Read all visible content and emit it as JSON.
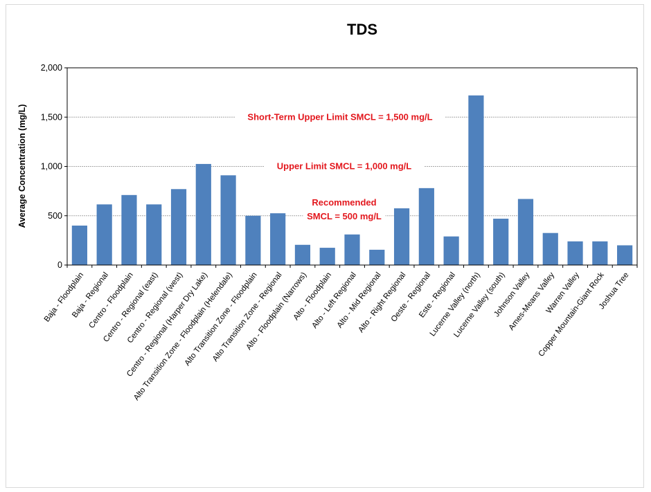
{
  "chart_data": {
    "type": "bar",
    "title": "TDS",
    "xlabel": "",
    "ylabel": "Average Concentration (mg/L)",
    "ylim": [
      0,
      2000
    ],
    "yticks": [
      0,
      500,
      1000,
      1500,
      2000
    ],
    "ytick_labels": [
      "0",
      "500",
      "1,000",
      "1,500",
      "2,000"
    ],
    "grid": false,
    "bar_color": "#4F81BD",
    "reference_line_color": "#a6a6a6",
    "annotation_color": "#e3171d",
    "reference_lines": [
      {
        "value": 1500,
        "label_lines": [
          "Short-Term Upper Limit SMCL = 1,500 mg/L"
        ]
      },
      {
        "value": 1000,
        "label_lines": [
          "Upper Limit  SMCL = 1,000 mg/L"
        ]
      },
      {
        "value": 500,
        "label_lines": [
          "Recommended",
          "SMCL = 500 mg/L"
        ]
      }
    ],
    "categories": [
      "Baja - Floodplain",
      "Baja - Regional",
      "Centro - Floodplain",
      "Centro - Regional (east)",
      "Centro - Regional (west)",
      "Centro - Regional (Harper Dry Lake)",
      "Alto Transition Zone - Floodplain (Helendale)",
      "Alto Transition Zone - Floodplain",
      "Alto Transition Zone - Regional",
      "Alto - Floodplain (Narrows)",
      "Alto - Floodplain",
      "Alto - Left Regional",
      "Alto - Mid Regional",
      "Alto - Right Regional",
      "Oeste - Regional",
      "Este - Regional",
      "Lucerne Valley (north)",
      "Lucerne Valley (south)",
      "Johnson Valley",
      "Ames-Means Valley",
      "Warren Valley",
      "Copper Mountain-Giant Rock",
      "Joshua Tree"
    ],
    "values": [
      400,
      615,
      710,
      615,
      770,
      1025,
      910,
      500,
      525,
      205,
      175,
      310,
      155,
      575,
      780,
      290,
      1720,
      470,
      670,
      325,
      240,
      240,
      200
    ]
  }
}
